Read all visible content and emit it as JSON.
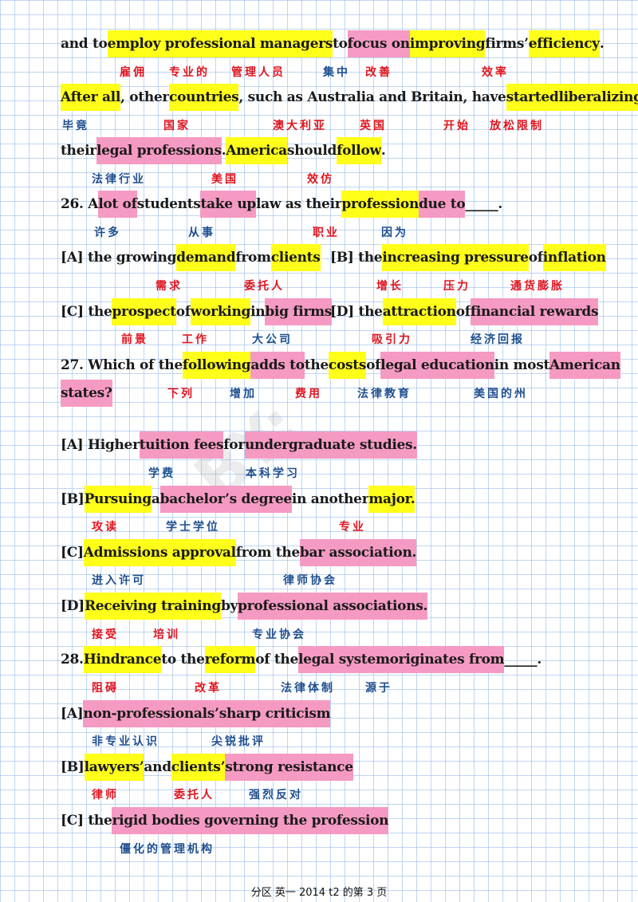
{
  "lines": {
    "l1": [
      "and to ",
      "employ professional managers",
      " to ",
      "focus on",
      " ",
      "improving",
      " firms’ ",
      "efficiency",
      "."
    ],
    "z1": [
      "雇佣",
      "专业的",
      "管理人员",
      "集中",
      "改善",
      "效率"
    ],
    "l2": [
      "After all",
      ", other ",
      "countries",
      ", such as Australia and Britain, have ",
      "started",
      " ",
      "liberalizing"
    ],
    "z2": [
      "毕竟",
      "国家",
      "澳大利亚",
      "英国",
      "开始",
      "放松限制"
    ],
    "l3": [
      "their ",
      "legal professions",
      ". ",
      "America",
      " should ",
      "follow",
      "."
    ],
    "z3": [
      "法律行业",
      "美国",
      "效仿"
    ],
    "l4": [
      "26. A ",
      "lot of",
      " students ",
      "take up",
      " law as their ",
      "profession",
      " ",
      "due to",
      " _____."
    ],
    "z4": [
      "许多",
      "从事",
      "职业",
      "因为"
    ],
    "l5a": [
      "[A] the growing ",
      "demand",
      " from ",
      "clients"
    ],
    "l5b": [
      "[B] the ",
      "increasing pressure",
      " of ",
      "inflation"
    ],
    "z5": [
      "需求",
      "委托人",
      "增长",
      "压力",
      "通货膨胀"
    ],
    "l6a": [
      "[C] the ",
      "prospect",
      " of ",
      "working",
      " in ",
      "big firms"
    ],
    "l6b": [
      "[D] the ",
      "attraction",
      " of ",
      "financial rewards"
    ],
    "z6": [
      "前景",
      "工作",
      "大公司",
      "吸引力",
      "经济回报"
    ],
    "l7": [
      "27. Which of the ",
      "following",
      "adds to",
      " the ",
      "costs",
      " of ",
      "legal education",
      " in most ",
      "American"
    ],
    "l8": [
      "states?"
    ],
    "z8": [
      "下列",
      "增加",
      "费用",
      "法律教育",
      "美国的州"
    ],
    "l9": [
      "[A] Higher ",
      "tuition fees",
      " for ",
      "undergraduate studies."
    ],
    "z9": [
      "学费",
      "本科学习"
    ],
    "l10": [
      "[B] ",
      "Pursuing",
      " a ",
      "bachelor’s degree",
      " in another ",
      "major."
    ],
    "z10": [
      "攻读",
      "学士学位",
      "专业"
    ],
    "l11": [
      "[C] ",
      "Admissions approval",
      " from the ",
      "bar association."
    ],
    "z11": [
      "进入许可",
      "律师协会"
    ],
    "l12": [
      "[D] ",
      "Receiving training",
      " by ",
      "professional associations."
    ],
    "z12": [
      "接受",
      "培训",
      "专业协会"
    ],
    "l13": [
      "28. ",
      "Hindrance",
      " to the ",
      "reform",
      " of the ",
      "legal system",
      " ",
      "originates from",
      " _____."
    ],
    "z13": [
      "阻碍",
      "改革",
      "法律体制",
      "源于"
    ],
    "l14": [
      "[A] ",
      "non-professionals’",
      " ",
      "sharp criticism"
    ],
    "z14": [
      "非专业认识",
      "尖锐批评"
    ],
    "l15": [
      "[B] ",
      "lawyers’",
      " and ",
      "clients’",
      " ",
      "strong resistance"
    ],
    "z15": [
      "律师",
      "委托人",
      "强烈反对"
    ],
    "l16": [
      "[C] the ",
      "rigid bodies governing the profession"
    ],
    "z16": [
      "僵化的管理机构"
    ]
  },
  "footer": "分区 英一 2014 t2 的第 3 页",
  "colors": {
    "highlight_yellow": "#ffff1a",
    "highlight_pink": "#f59ac3",
    "red_note": "#e0151f",
    "blue_note": "#1f4f8f"
  }
}
